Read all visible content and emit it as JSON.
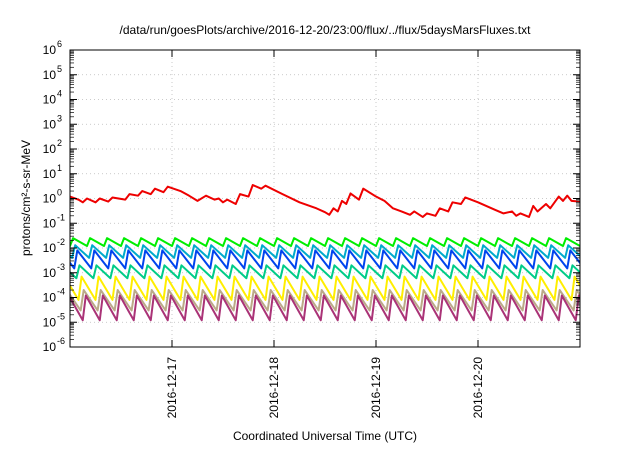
{
  "chart_data": {
    "type": "line",
    "title": "/data/run/goesPlots/archive/2016-12-20/23:00/flux/../flux/5daysMarsFluxes.txt",
    "xlabel": "Coordinated Universal Time (UTC)",
    "ylabel": "protons/cm²-s-sr-MeV",
    "y_scale": "log",
    "ylim": [
      1e-06,
      1000000.0
    ],
    "y_ticks": [
      {
        "exp": "-6"
      },
      {
        "exp": "-5"
      },
      {
        "exp": "-4"
      },
      {
        "exp": "-3"
      },
      {
        "exp": "-2"
      },
      {
        "exp": "-1"
      },
      {
        "exp": "0"
      },
      {
        "exp": "1"
      },
      {
        "exp": "2"
      },
      {
        "exp": "3"
      },
      {
        "exp": "4"
      },
      {
        "exp": "5"
      },
      {
        "exp": "6"
      }
    ],
    "xlim": [
      "2016-12-16T00:00",
      "2016-12-21T00:00"
    ],
    "x_ticks": [
      {
        "label": "2016-12-17",
        "value": "2016-12-17T00:00"
      },
      {
        "label": "2016-12-18",
        "value": "2016-12-18T00:00"
      },
      {
        "label": "2016-12-19",
        "value": "2016-12-19T00:00"
      },
      {
        "label": "2016-12-20",
        "value": "2016-12-20T00:00"
      }
    ],
    "grid": true,
    "legend": "none",
    "series": [
      {
        "color": "#ee0000",
        "style": "smooth",
        "points": [
          [
            "2016-12-16T00:00",
            1.2
          ],
          [
            "2016-12-16T02:00",
            0.9
          ],
          [
            "2016-12-16T03:00",
            0.7
          ],
          [
            "2016-12-16T04:00",
            1.0
          ],
          [
            "2016-12-16T06:00",
            0.7
          ],
          [
            "2016-12-16T07:00",
            1.0
          ],
          [
            "2016-12-16T09:00",
            0.75
          ],
          [
            "2016-12-16T10:00",
            1.1
          ],
          [
            "2016-12-16T13:00",
            0.9
          ],
          [
            "2016-12-16T14:00",
            1.5
          ],
          [
            "2016-12-16T16:00",
            1.3
          ],
          [
            "2016-12-16T17:00",
            2.0
          ],
          [
            "2016-12-16T19:00",
            1.5
          ],
          [
            "2016-12-16T20:00",
            2.5
          ],
          [
            "2016-12-16T22:00",
            1.8
          ],
          [
            "2016-12-16T23:00",
            3.0
          ],
          [
            "2016-12-17T02:00",
            2.0
          ],
          [
            "2016-12-17T04:00",
            1.3
          ],
          [
            "2016-12-17T06:00",
            0.8
          ],
          [
            "2016-12-17T08:00",
            1.3
          ],
          [
            "2016-12-17T10:00",
            0.9
          ],
          [
            "2016-12-17T11:00",
            1.0
          ],
          [
            "2016-12-17T12:00",
            0.7
          ],
          [
            "2016-12-17T13:00",
            0.9
          ],
          [
            "2016-12-17T15:00",
            0.6
          ],
          [
            "2016-12-17T16:00",
            1.5
          ],
          [
            "2016-12-17T18:00",
            1.2
          ],
          [
            "2016-12-17T19:00",
            3.5
          ],
          [
            "2016-12-17T21:00",
            2.5
          ],
          [
            "2016-12-17T22:00",
            3.3
          ],
          [
            "2016-12-18T02:00",
            1.5
          ],
          [
            "2016-12-18T06:00",
            0.7
          ],
          [
            "2016-12-18T10:00",
            0.4
          ],
          [
            "2016-12-18T12:00",
            0.28
          ],
          [
            "2016-12-18T13:00",
            0.22
          ],
          [
            "2016-12-18T14:00",
            0.4
          ],
          [
            "2016-12-18T15:00",
            0.3
          ],
          [
            "2016-12-18T16:00",
            0.8
          ],
          [
            "2016-12-18T17:00",
            0.6
          ],
          [
            "2016-12-18T18:00",
            1.6
          ],
          [
            "2016-12-18T20:00",
            0.9
          ],
          [
            "2016-12-18T21:00",
            2.5
          ],
          [
            "2016-12-19T00:00",
            1.2
          ],
          [
            "2016-12-19T02:00",
            0.8
          ],
          [
            "2016-12-19T04:00",
            0.4
          ],
          [
            "2016-12-19T06:00",
            0.3
          ],
          [
            "2016-12-19T08:00",
            0.22
          ],
          [
            "2016-12-19T09:00",
            0.3
          ],
          [
            "2016-12-19T11:00",
            0.18
          ],
          [
            "2016-12-19T12:00",
            0.25
          ],
          [
            "2016-12-19T14:00",
            0.2
          ],
          [
            "2016-12-19T15:00",
            0.4
          ],
          [
            "2016-12-19T17:00",
            0.3
          ],
          [
            "2016-12-19T18:00",
            0.7
          ],
          [
            "2016-12-19T20:00",
            0.6
          ],
          [
            "2016-12-19T21:00",
            1.1
          ],
          [
            "2016-12-20T00:00",
            0.7
          ],
          [
            "2016-12-20T04:00",
            0.35
          ],
          [
            "2016-12-20T06:00",
            0.25
          ],
          [
            "2016-12-20T08:00",
            0.3
          ],
          [
            "2016-12-20T09:00",
            0.2
          ],
          [
            "2016-12-20T10:00",
            0.25
          ],
          [
            "2016-12-20T12:00",
            0.18
          ],
          [
            "2016-12-20T13:00",
            0.5
          ],
          [
            "2016-12-20T14:00",
            0.3
          ],
          [
            "2016-12-20T16:00",
            0.6
          ],
          [
            "2016-12-20T17:00",
            0.4
          ],
          [
            "2016-12-20T19:00",
            1.2
          ],
          [
            "2016-12-20T20:00",
            0.8
          ],
          [
            "2016-12-20T21:00",
            1.3
          ],
          [
            "2016-12-20T22:00",
            0.8
          ],
          [
            "2016-12-21T00:00",
            0.75
          ]
        ]
      },
      {
        "color": "#00ee00",
        "style": "sawtooth",
        "peak": 0.025,
        "trough": 0.012,
        "period_hours": 4,
        "phase_hours": 0
      },
      {
        "color": "#00aacc",
        "style": "sawtooth",
        "peak": 0.013,
        "trough": 0.004,
        "period_hours": 4,
        "phase_hours": 0.5
      },
      {
        "color": "#0044ee",
        "style": "sawtooth",
        "peak": 0.008,
        "trough": 0.0015,
        "period_hours": 4,
        "phase_hours": 1
      },
      {
        "color": "#00cc88",
        "style": "sawtooth",
        "peak": 0.002,
        "trough": 0.0006,
        "period_hours": 4,
        "phase_hours": 1.5
      },
      {
        "color": "#ffee00",
        "style": "sawtooth",
        "peak": 0.0007,
        "trough": 8e-05,
        "period_hours": 4,
        "phase_hours": 2
      },
      {
        "color": "#bbaa88",
        "style": "sawtooth",
        "peak": 0.0002,
        "trough": 3e-05,
        "period_hours": 4,
        "phase_hours": 2.5
      },
      {
        "color": "#aa3377",
        "style": "sawtooth",
        "peak": 0.00012,
        "trough": 1.2e-05,
        "period_hours": 4,
        "phase_hours": 3
      }
    ]
  }
}
